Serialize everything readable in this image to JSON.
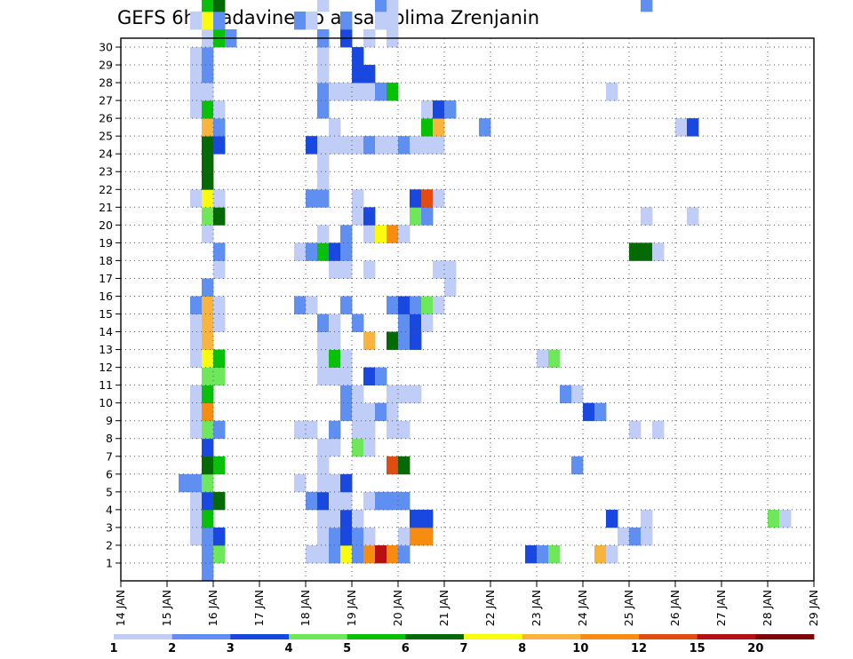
{
  "chart_data": {
    "type": "heatmap",
    "title": "GEFS 6hr padavine po ansamblima Zrenjanin",
    "xlabel": "",
    "ylabel": "",
    "x_tick_labels": [
      "14 JAN",
      "15 JAN",
      "16 JAN",
      "17 JAN",
      "18 JAN",
      "19 JAN",
      "20 JAN",
      "21 JAN",
      "22 JAN",
      "23 JAN",
      "24 JAN",
      "25 JAN",
      "26 JAN",
      "27 JAN",
      "28 JAN",
      "29 JAN"
    ],
    "xlim": [
      "14 JAN",
      "29 JAN"
    ],
    "time_step_hours": 6,
    "y_tick_labels": [
      1,
      2,
      3,
      4,
      5,
      6,
      7,
      8,
      9,
      10,
      11,
      12,
      13,
      14,
      15,
      16,
      17,
      18,
      19,
      20,
      21,
      22,
      23,
      24,
      25,
      26,
      27,
      28,
      29,
      30
    ],
    "ylim": [
      0,
      30
    ],
    "grid": true,
    "colorbar": {
      "placement": "bottom",
      "labels": [
        "1",
        "2",
        "3",
        "4",
        "5",
        "6",
        "7",
        "8",
        "10",
        "12",
        "15",
        "20"
      ],
      "colors": [
        "#bfcdf7",
        "#5f8ff0",
        "#1848e0",
        "#6ee85a",
        "#08c008",
        "#046a04",
        "#fbfb10",
        "#f8b43c",
        "#f68c10",
        "#e24c10",
        "#b81010",
        "#7a0808"
      ]
    },
    "cells_note": "[member, time_index, color_class]; time_index counts 6-hour steps from 14 JAN 00z; color_class indexes colorbar.colors",
    "cells": [
      [
        0,
        7,
        1
      ],
      [
        1,
        7,
        1
      ],
      [
        1,
        8,
        3
      ],
      [
        1,
        16,
        0
      ],
      [
        1,
        17,
        0
      ],
      [
        1,
        18,
        1
      ],
      [
        1,
        19,
        6
      ],
      [
        1,
        20,
        1
      ],
      [
        1,
        21,
        8
      ],
      [
        1,
        22,
        10
      ],
      [
        1,
        23,
        8
      ],
      [
        1,
        24,
        1
      ],
      [
        1,
        35,
        2
      ],
      [
        1,
        36,
        1
      ],
      [
        1,
        37,
        3
      ],
      [
        1,
        41,
        7
      ],
      [
        1,
        42,
        0
      ],
      [
        2,
        6,
        0
      ],
      [
        2,
        7,
        1
      ],
      [
        2,
        8,
        2
      ],
      [
        2,
        17,
        0
      ],
      [
        2,
        18,
        1
      ],
      [
        2,
        19,
        2
      ],
      [
        2,
        20,
        1
      ],
      [
        2,
        21,
        0
      ],
      [
        2,
        24,
        0
      ],
      [
        2,
        25,
        8
      ],
      [
        2,
        26,
        8
      ],
      [
        2,
        43,
        0
      ],
      [
        2,
        44,
        1
      ],
      [
        2,
        45,
        0
      ],
      [
        3,
        6,
        0
      ],
      [
        3,
        7,
        4
      ],
      [
        3,
        17,
        0
      ],
      [
        3,
        18,
        0
      ],
      [
        3,
        19,
        2
      ],
      [
        3,
        20,
        0
      ],
      [
        3,
        25,
        2
      ],
      [
        3,
        26,
        2
      ],
      [
        3,
        42,
        2
      ],
      [
        3,
        45,
        0
      ],
      [
        3,
        56,
        3
      ],
      [
        3,
        57,
        0
      ],
      [
        4,
        6,
        0
      ],
      [
        4,
        7,
        2
      ],
      [
        4,
        8,
        5
      ],
      [
        4,
        16,
        1
      ],
      [
        4,
        17,
        2
      ],
      [
        4,
        18,
        0
      ],
      [
        4,
        19,
        0
      ],
      [
        4,
        21,
        0
      ],
      [
        4,
        22,
        1
      ],
      [
        4,
        23,
        1
      ],
      [
        4,
        24,
        1
      ],
      [
        5,
        5,
        1
      ],
      [
        5,
        6,
        1
      ],
      [
        5,
        7,
        3
      ],
      [
        5,
        15,
        0
      ],
      [
        5,
        17,
        0
      ],
      [
        5,
        18,
        0
      ],
      [
        5,
        19,
        2
      ],
      [
        6,
        7,
        5
      ],
      [
        6,
        8,
        4
      ],
      [
        6,
        17,
        0
      ],
      [
        6,
        23,
        9
      ],
      [
        6,
        24,
        5
      ],
      [
        6,
        39,
        1
      ],
      [
        7,
        7,
        2
      ],
      [
        7,
        17,
        0
      ],
      [
        7,
        18,
        0
      ],
      [
        7,
        20,
        3
      ],
      [
        7,
        21,
        0
      ],
      [
        8,
        6,
        0
      ],
      [
        8,
        7,
        3
      ],
      [
        8,
        8,
        1
      ],
      [
        8,
        15,
        0
      ],
      [
        8,
        16,
        0
      ],
      [
        8,
        18,
        1
      ],
      [
        8,
        20,
        0
      ],
      [
        8,
        21,
        0
      ],
      [
        8,
        23,
        0
      ],
      [
        8,
        24,
        0
      ],
      [
        8,
        44,
        0
      ],
      [
        8,
        46,
        0
      ],
      [
        9,
        6,
        0
      ],
      [
        9,
        7,
        8
      ],
      [
        9,
        19,
        1
      ],
      [
        9,
        20,
        0
      ],
      [
        9,
        21,
        0
      ],
      [
        9,
        22,
        1
      ],
      [
        9,
        23,
        0
      ],
      [
        9,
        40,
        2
      ],
      [
        9,
        41,
        1
      ],
      [
        10,
        6,
        0
      ],
      [
        10,
        7,
        4
      ],
      [
        10,
        19,
        1
      ],
      [
        10,
        20,
        0
      ],
      [
        10,
        23,
        0
      ],
      [
        10,
        24,
        0
      ],
      [
        10,
        25,
        0
      ],
      [
        10,
        38,
        1
      ],
      [
        10,
        39,
        0
      ],
      [
        11,
        7,
        3
      ],
      [
        11,
        8,
        3
      ],
      [
        11,
        17,
        0
      ],
      [
        11,
        18,
        0
      ],
      [
        11,
        19,
        0
      ],
      [
        11,
        21,
        2
      ],
      [
        11,
        22,
        1
      ],
      [
        12,
        6,
        0
      ],
      [
        12,
        7,
        6
      ],
      [
        12,
        8,
        4
      ],
      [
        12,
        17,
        0
      ],
      [
        12,
        18,
        4
      ],
      [
        12,
        19,
        0
      ],
      [
        12,
        36,
        0
      ],
      [
        12,
        37,
        3
      ],
      [
        13,
        6,
        0
      ],
      [
        13,
        7,
        7
      ],
      [
        13,
        17,
        0
      ],
      [
        13,
        18,
        0
      ],
      [
        13,
        21,
        7
      ],
      [
        13,
        23,
        5
      ],
      [
        13,
        24,
        1
      ],
      [
        13,
        25,
        2
      ],
      [
        14,
        6,
        0
      ],
      [
        14,
        7,
        7
      ],
      [
        14,
        8,
        0
      ],
      [
        14,
        17,
        1
      ],
      [
        14,
        18,
        0
      ],
      [
        14,
        20,
        1
      ],
      [
        14,
        24,
        1
      ],
      [
        14,
        25,
        2
      ],
      [
        14,
        26,
        0
      ],
      [
        15,
        6,
        1
      ],
      [
        15,
        7,
        7
      ],
      [
        15,
        8,
        0
      ],
      [
        15,
        15,
        1
      ],
      [
        15,
        16,
        0
      ],
      [
        15,
        19,
        1
      ],
      [
        15,
        23,
        1
      ],
      [
        15,
        24,
        2
      ],
      [
        15,
        25,
        1
      ],
      [
        15,
        26,
        3
      ],
      [
        15,
        27,
        0
      ],
      [
        16,
        7,
        1
      ],
      [
        16,
        28,
        0
      ],
      [
        17,
        8,
        0
      ],
      [
        17,
        18,
        0
      ],
      [
        17,
        19,
        0
      ],
      [
        17,
        21,
        0
      ],
      [
        17,
        27,
        0
      ],
      [
        17,
        28,
        0
      ],
      [
        18,
        8,
        1
      ],
      [
        18,
        15,
        0
      ],
      [
        18,
        16,
        1
      ],
      [
        18,
        17,
        4
      ],
      [
        18,
        18,
        2
      ],
      [
        18,
        19,
        1
      ],
      [
        18,
        44,
        5
      ],
      [
        18,
        45,
        5
      ],
      [
        18,
        46,
        0
      ],
      [
        19,
        7,
        0
      ],
      [
        19,
        17,
        0
      ],
      [
        19,
        19,
        1
      ],
      [
        19,
        21,
        0
      ],
      [
        19,
        22,
        6
      ],
      [
        19,
        23,
        8
      ],
      [
        19,
        24,
        0
      ],
      [
        20,
        7,
        3
      ],
      [
        20,
        8,
        5
      ],
      [
        20,
        20,
        0
      ],
      [
        20,
        21,
        2
      ],
      [
        20,
        25,
        3
      ],
      [
        20,
        26,
        1
      ],
      [
        20,
        45,
        0
      ],
      [
        20,
        49,
        0
      ],
      [
        21,
        6,
        0
      ],
      [
        21,
        7,
        6
      ],
      [
        21,
        8,
        0
      ],
      [
        21,
        16,
        1
      ],
      [
        21,
        17,
        1
      ],
      [
        21,
        20,
        0
      ],
      [
        21,
        25,
        2
      ],
      [
        21,
        26,
        9
      ],
      [
        21,
        27,
        0
      ],
      [
        22,
        7,
        5
      ],
      [
        22,
        17,
        0
      ],
      [
        23,
        7,
        5
      ],
      [
        23,
        17,
        0
      ],
      [
        24,
        7,
        5
      ],
      [
        24,
        8,
        2
      ],
      [
        24,
        16,
        2
      ],
      [
        24,
        17,
        0
      ],
      [
        24,
        18,
        0
      ],
      [
        24,
        19,
        0
      ],
      [
        24,
        20,
        0
      ],
      [
        24,
        21,
        1
      ],
      [
        24,
        22,
        0
      ],
      [
        24,
        23,
        0
      ],
      [
        24,
        24,
        1
      ],
      [
        24,
        25,
        0
      ],
      [
        24,
        26,
        0
      ],
      [
        24,
        27,
        0
      ],
      [
        25,
        7,
        7
      ],
      [
        25,
        8,
        1
      ],
      [
        25,
        18,
        0
      ],
      [
        25,
        26,
        4
      ],
      [
        25,
        27,
        7
      ],
      [
        25,
        31,
        1
      ],
      [
        25,
        48,
        0
      ],
      [
        25,
        49,
        2
      ],
      [
        26,
        6,
        0
      ],
      [
        26,
        7,
        4
      ],
      [
        26,
        8,
        0
      ],
      [
        26,
        17,
        1
      ],
      [
        26,
        26,
        0
      ],
      [
        26,
        27,
        2
      ],
      [
        26,
        28,
        1
      ],
      [
        27,
        6,
        0
      ],
      [
        27,
        7,
        0
      ],
      [
        27,
        17,
        1
      ],
      [
        27,
        18,
        0
      ],
      [
        27,
        19,
        0
      ],
      [
        27,
        20,
        0
      ],
      [
        27,
        21,
        0
      ],
      [
        27,
        22,
        1
      ],
      [
        27,
        23,
        4
      ],
      [
        27,
        42,
        0
      ],
      [
        28,
        6,
        0
      ],
      [
        28,
        7,
        1
      ],
      [
        28,
        17,
        0
      ],
      [
        28,
        20,
        2
      ],
      [
        28,
        21,
        2
      ],
      [
        29,
        6,
        0
      ],
      [
        29,
        7,
        1
      ],
      [
        29,
        17,
        0
      ],
      [
        29,
        20,
        2
      ],
      [
        30,
        7,
        0
      ],
      [
        30,
        8,
        4
      ],
      [
        30,
        9,
        1
      ],
      [
        30,
        17,
        1
      ],
      [
        30,
        19,
        2
      ],
      [
        30,
        21,
        0
      ],
      [
        30,
        23,
        0
      ],
      [
        31,
        6,
        0
      ],
      [
        31,
        7,
        6
      ],
      [
        31,
        8,
        1
      ],
      [
        31,
        15,
        1
      ],
      [
        31,
        16,
        0
      ],
      [
        31,
        19,
        1
      ],
      [
        31,
        22,
        0
      ],
      [
        31,
        23,
        0
      ],
      [
        32,
        7,
        4
      ],
      [
        32,
        8,
        5
      ],
      [
        32,
        17,
        0
      ],
      [
        32,
        22,
        1
      ],
      [
        32,
        23,
        0
      ],
      [
        32,
        45,
        1
      ]
    ]
  }
}
